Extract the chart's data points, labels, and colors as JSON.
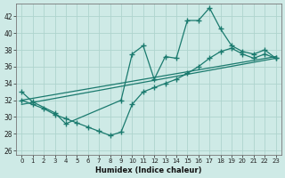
{
  "xlabel": "Humidex (Indice chaleur)",
  "xlim": [
    -0.5,
    23.5
  ],
  "ylim": [
    25.5,
    43.5
  ],
  "yticks": [
    26,
    28,
    30,
    32,
    34,
    36,
    38,
    40,
    42
  ],
  "xticks": [
    0,
    1,
    2,
    3,
    4,
    5,
    6,
    7,
    8,
    9,
    10,
    11,
    12,
    13,
    14,
    15,
    16,
    17,
    18,
    19,
    20,
    21,
    22,
    23
  ],
  "bg_color": "#ceeae6",
  "line_color": "#1a7a6e",
  "grid_color": "#aed4ce",
  "line1_x": [
    0,
    1,
    3,
    4,
    9,
    10,
    11,
    12,
    13,
    14,
    15,
    16,
    17,
    18,
    19,
    20,
    21,
    22,
    23
  ],
  "line1_y": [
    33.0,
    31.8,
    30.5,
    29.2,
    32.0,
    37.5,
    38.5,
    34.5,
    37.2,
    37.0,
    41.5,
    41.5,
    43.0,
    40.5,
    38.5,
    37.8,
    37.5,
    38.0,
    37.0
  ],
  "line2_x": [
    0,
    1,
    2,
    3,
    4,
    5,
    6,
    7,
    8,
    9,
    10,
    11,
    12,
    13,
    14,
    15,
    16,
    17,
    18,
    19,
    20,
    21,
    22,
    23
  ],
  "line2_y": [
    32.0,
    31.5,
    31.0,
    30.3,
    29.8,
    29.3,
    28.8,
    28.3,
    27.8,
    28.2,
    31.5,
    33.0,
    33.5,
    34.0,
    34.5,
    35.2,
    36.0,
    37.0,
    37.8,
    38.2,
    37.5,
    37.0,
    37.5,
    37.0
  ],
  "line3_x": [
    0,
    23
  ],
  "line3_y": [
    31.5,
    37.0
  ],
  "line4_x": [
    0,
    23
  ],
  "line4_y": [
    32.0,
    37.2
  ]
}
